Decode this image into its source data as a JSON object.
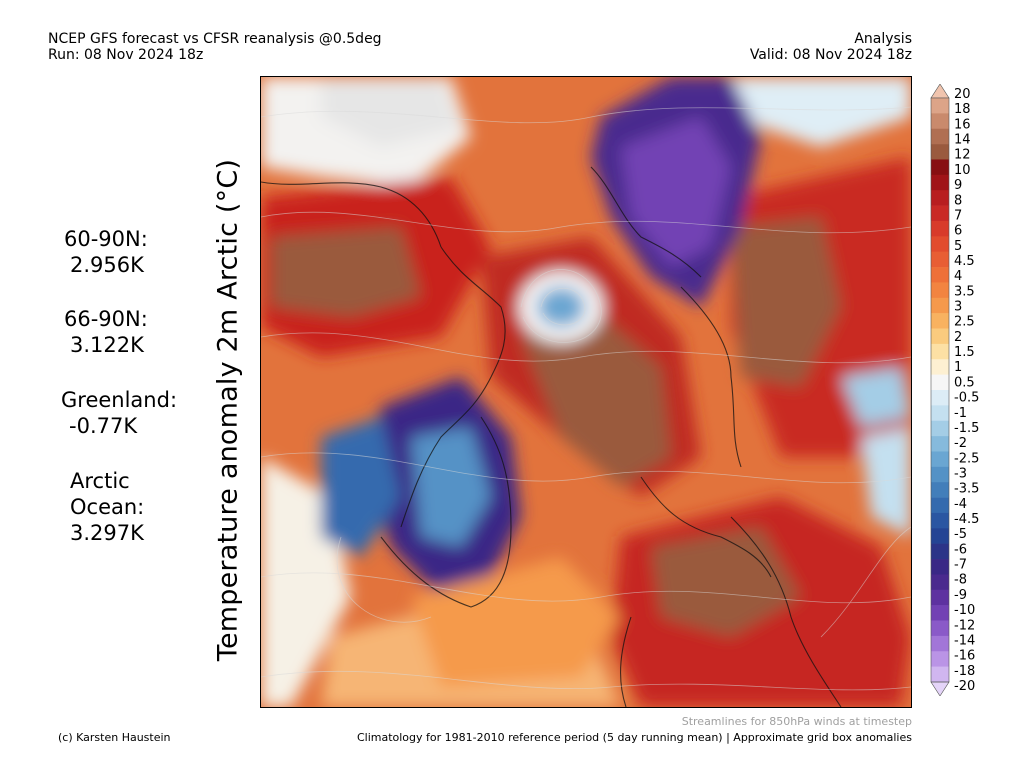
{
  "header": {
    "left_line1": "NCEP GFS forecast vs CFSR reanalysis @0.5deg",
    "left_line2": "Run: 08 Nov 2024 18z",
    "right_line1": "Analysis",
    "right_line2": "Valid: 08 Nov 2024 18z"
  },
  "axis_label": "Temperature anomaly 2m Arctic (°C)",
  "stats": [
    {
      "label": "60-90N:",
      "value": "2.956K"
    },
    {
      "label": "66-90N:",
      "value": "3.122K"
    },
    {
      "label": "Greenland:",
      "value": "-0.77K"
    },
    {
      "label": "Arctic",
      "label2": "Ocean:",
      "value": "3.297K"
    }
  ],
  "colorbar": {
    "labels": [
      "20",
      "18",
      "16",
      "14",
      "12",
      "10",
      "9",
      "8",
      "7",
      "6",
      "5",
      "4.5",
      "4",
      "3.5",
      "3",
      "2.5",
      "2",
      "1.5",
      "1",
      "0.5",
      "-0.5",
      "-1",
      "-1.5",
      "-2",
      "-2.5",
      "-3",
      "-3.5",
      "-4",
      "-4.5",
      "-5",
      "-6",
      "-7",
      "-8",
      "-9",
      "-10",
      "-12",
      "-14",
      "-16",
      "-18",
      "-20"
    ],
    "colors": [
      "#f0c4ae",
      "#dca488",
      "#c98a6c",
      "#b06f52",
      "#9a5a3e",
      "#870f12",
      "#a01418",
      "#b81e20",
      "#c92a26",
      "#d83a2a",
      "#e24c2e",
      "#e85e34",
      "#ee7038",
      "#f28440",
      "#f5994c",
      "#f8b260",
      "#facb7e",
      "#fce0a4",
      "#fdf0d2",
      "#f6f6f6",
      "#dcecf6",
      "#c4e0f0",
      "#a4cde6",
      "#86badc",
      "#6aa6d2",
      "#5492c6",
      "#427eba",
      "#346aae",
      "#2a56a2",
      "#244494",
      "#2c3488",
      "#3a2886",
      "#4a2a8e",
      "#5e32a0",
      "#7242b4",
      "#8a5ac8",
      "#a276d8",
      "#ba94e6",
      "#d0b6f0",
      "#e4d4f8"
    ]
  },
  "footer": {
    "left": "(c) Karsten Haustein",
    "right": "Climatology for 1981-2010 reference period (5 day running mean) | Approximate grid box anomalies",
    "note": "Streamlines for 850hPa winds at timestep"
  }
}
